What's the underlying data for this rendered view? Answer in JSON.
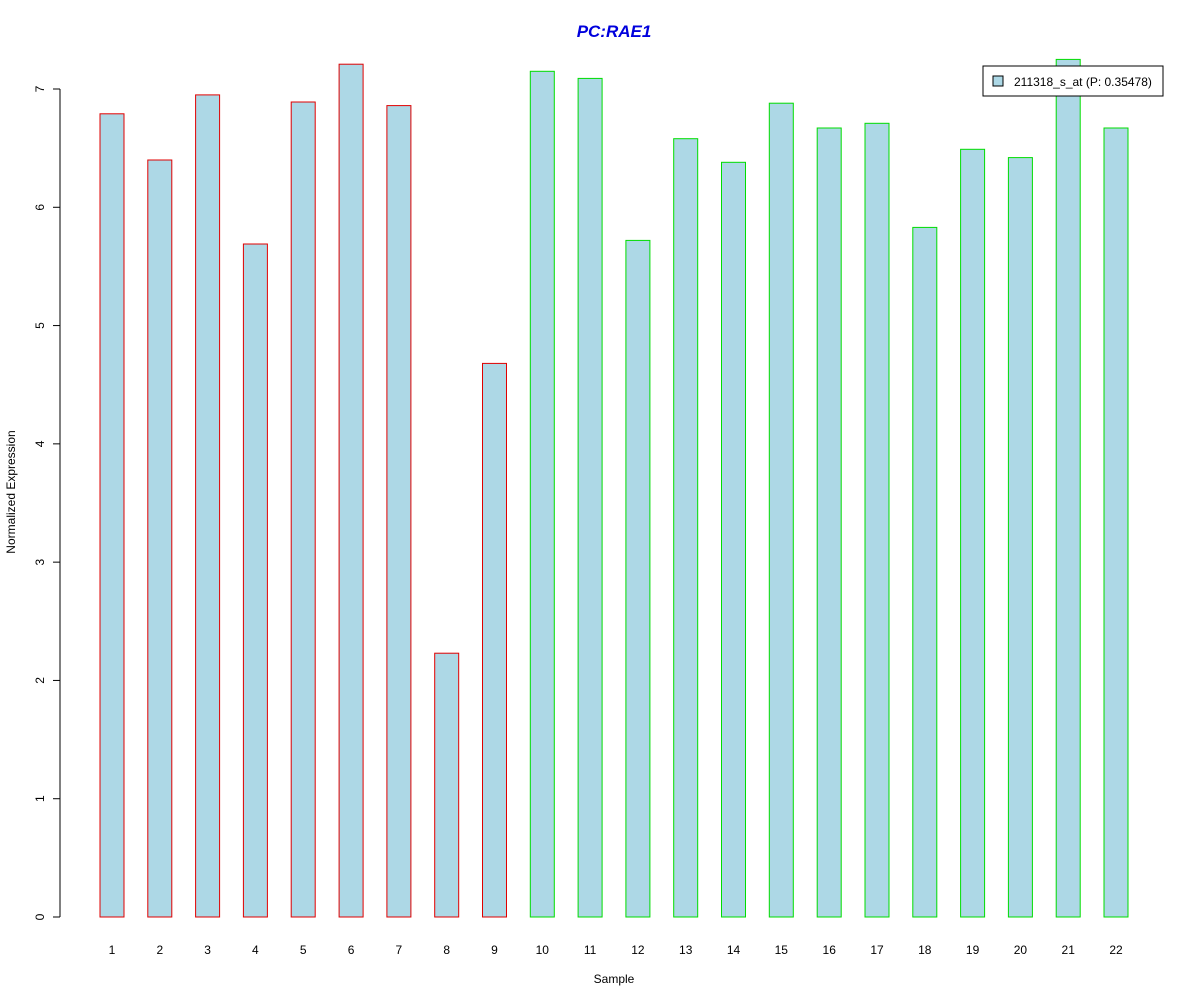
{
  "chart_data": {
    "type": "bar",
    "title": "PC:RAE1",
    "xlabel": "Sample",
    "ylabel": "Normalized Expression",
    "categories": [
      "1",
      "2",
      "3",
      "4",
      "5",
      "6",
      "7",
      "8",
      "9",
      "10",
      "11",
      "12",
      "13",
      "14",
      "15",
      "16",
      "17",
      "18",
      "19",
      "20",
      "21",
      "22"
    ],
    "series": [
      {
        "name": "211318_s_at (P: 0.35478)",
        "values": [
          6.79,
          6.4,
          6.95,
          5.69,
          6.89,
          7.21,
          6.86,
          2.23,
          4.68,
          7.15,
          7.09,
          5.72,
          6.58,
          6.38,
          6.88,
          6.67,
          6.71,
          5.83,
          6.49,
          6.42,
          7.25,
          6.67
        ]
      }
    ],
    "group_borders": [
      "#e00000",
      "#e00000",
      "#e00000",
      "#e00000",
      "#e00000",
      "#e00000",
      "#e00000",
      "#e00000",
      "#e00000",
      "#00dd00",
      "#00dd00",
      "#00dd00",
      "#00dd00",
      "#00dd00",
      "#00dd00",
      "#00dd00",
      "#00dd00",
      "#00dd00",
      "#00dd00",
      "#00dd00",
      "#00dd00",
      "#00dd00"
    ],
    "yticks": [
      0,
      1,
      2,
      3,
      4,
      5,
      6,
      7
    ],
    "ylim": [
      0,
      7.25
    ],
    "grid": false,
    "legend_position": "top-right",
    "colors": {
      "bar_fill": "#add8e6",
      "title": "#0000dd",
      "axis": "#000000"
    }
  }
}
